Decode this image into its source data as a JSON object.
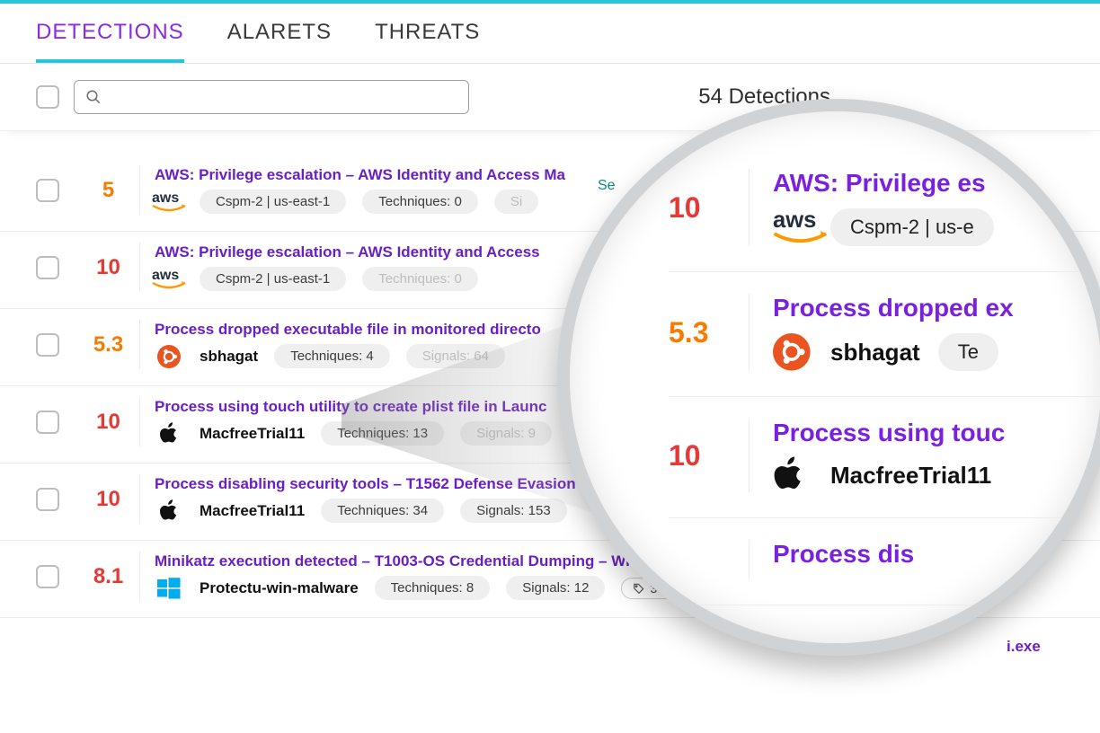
{
  "colors": {
    "accent_top": "#29c5d6",
    "tab_active_text": "#8a2be2",
    "title_link": "#6a1fc4",
    "score_red": "#e53935",
    "score_orange": "#f57c00",
    "pill_bg": "#efefef",
    "border": "#ececec",
    "save_search": "#0a8a7a"
  },
  "tabs": [
    {
      "label": "DETECTIONS",
      "active": true
    },
    {
      "label": "ALARETS",
      "active": false
    },
    {
      "label": "THREATS",
      "active": false
    }
  ],
  "toolbar": {
    "search_placeholder": "",
    "count_text": "54 Detections",
    "save_search_label": "Se"
  },
  "rows": [
    {
      "score": "5",
      "score_color": "orange",
      "title": "AWS: Privilege escalation – AWS Identity and Access Ma",
      "os": "aws",
      "host": "",
      "pills": [
        "Cspm-2 | us-east-1",
        "Techniques: 0",
        "Si"
      ]
    },
    {
      "score": "10",
      "score_color": "red",
      "title": "AWS: Privilege escalation – AWS Identity and Access",
      "os": "aws",
      "host": "",
      "pills": [
        "Cspm-2 | us-east-1",
        "Techniques: 0"
      ]
    },
    {
      "score": "5.3",
      "score_color": "orange",
      "title": "Process dropped executable file in monitored directo",
      "os": "ubuntu",
      "host": "sbhagat",
      "pills": [
        "Techniques: 4",
        "Signals: 64"
      ]
    },
    {
      "score": "10",
      "score_color": "red",
      "title": "Process using touch utility to create plist file in Launc",
      "os": "apple",
      "host": "MacfreeTrial11",
      "pills": [
        "Techniques: 13",
        "Signals: 9"
      ]
    },
    {
      "score": "10",
      "score_color": "red",
      "title": "Process disabling security tools – T1562 Defense Evasion t",
      "os": "apple",
      "host": "MacfreeTrial11",
      "pills": [
        "Techniques: 34",
        "Signals: 153"
      ]
    },
    {
      "score": "8.1",
      "score_color": "red",
      "title": "Minikatz execution detected – T1003-OS Credential Dumping – Window",
      "os": "windows",
      "host": "Protectu-win-malware",
      "pills": [
        "Techniques: 8",
        "Signals: 12"
      ],
      "tag": "33",
      "trailing": "i.exe"
    }
  ],
  "lens": {
    "rows": [
      {
        "score": "10",
        "score_color": "red",
        "title": "AWS: Privilege es",
        "os": "aws",
        "host": "",
        "pill": "Cspm-2 | us-e"
      },
      {
        "score": "5.3",
        "score_color": "orange",
        "title": "Process dropped ex",
        "os": "ubuntu",
        "host": "sbhagat",
        "pill": "Te"
      },
      {
        "score": "10",
        "score_color": "red",
        "title": "Process using touc",
        "os": "apple",
        "host": "MacfreeTrial11",
        "pill": ""
      },
      {
        "score": "",
        "score_color": "red",
        "title": "Process dis",
        "os": "",
        "host": "",
        "pill": ""
      }
    ]
  }
}
